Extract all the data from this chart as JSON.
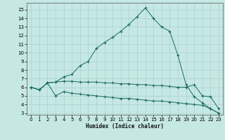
{
  "xlabel": "Humidex (Indice chaleur)",
  "bg_color": "#c5e8e5",
  "grid_color": "#aad0cc",
  "line_color": "#1a6b5a",
  "xlim": [
    -0.5,
    23.5
  ],
  "ylim": [
    2.8,
    15.8
  ],
  "yticks": [
    3,
    4,
    5,
    6,
    7,
    8,
    9,
    10,
    11,
    12,
    13,
    14,
    15
  ],
  "xticks": [
    0,
    1,
    2,
    3,
    4,
    5,
    6,
    7,
    8,
    9,
    10,
    11,
    12,
    13,
    14,
    15,
    16,
    17,
    18,
    19,
    20,
    21,
    22,
    23
  ],
  "line1_x": [
    0,
    1,
    2,
    3,
    4,
    5,
    6,
    7,
    8,
    9,
    10,
    11,
    12,
    13,
    14,
    15,
    16,
    17,
    18,
    19,
    20,
    21,
    22,
    23
  ],
  "line1_y": [
    6.0,
    5.7,
    6.5,
    6.6,
    7.2,
    7.5,
    8.5,
    9.0,
    10.5,
    11.2,
    11.8,
    12.5,
    13.3,
    14.2,
    15.2,
    14.0,
    13.0,
    12.5,
    9.7,
    6.3,
    4.9,
    4.2,
    3.5,
    3.0
  ],
  "line2_x": [
    0,
    1,
    2,
    3,
    4,
    5,
    6,
    7,
    8,
    9,
    10,
    11,
    12,
    13,
    14,
    15,
    16,
    17,
    18,
    19,
    20,
    21,
    22,
    23
  ],
  "line2_y": [
    6.0,
    5.7,
    6.5,
    6.6,
    6.7,
    6.7,
    6.6,
    6.6,
    6.6,
    6.5,
    6.5,
    6.4,
    6.4,
    6.3,
    6.3,
    6.2,
    6.2,
    6.1,
    6.0,
    6.0,
    6.3,
    5.0,
    4.9,
    3.5
  ],
  "line3_x": [
    0,
    1,
    2,
    3,
    4,
    5,
    6,
    7,
    8,
    9,
    10,
    11,
    12,
    13,
    14,
    15,
    16,
    17,
    18,
    19,
    20,
    21,
    22,
    23
  ],
  "line3_y": [
    6.0,
    5.7,
    6.5,
    5.0,
    5.5,
    5.3,
    5.2,
    5.1,
    5.0,
    4.9,
    4.8,
    4.7,
    4.7,
    4.6,
    4.5,
    4.4,
    4.4,
    4.3,
    4.2,
    4.1,
    4.0,
    3.9,
    3.5,
    3.0
  ]
}
